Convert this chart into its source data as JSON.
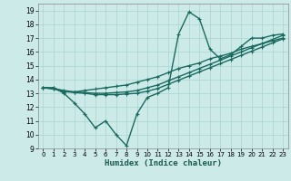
{
  "title": "",
  "xlabel": "Humidex (Indice chaleur)",
  "background_color": "#cceae8",
  "grid_color": "#aad4d0",
  "line_color": "#1a6a60",
  "xlim": [
    -0.5,
    23.5
  ],
  "ylim": [
    9,
    19.5
  ],
  "yticks": [
    9,
    10,
    11,
    12,
    13,
    14,
    15,
    16,
    17,
    18,
    19
  ],
  "xticks": [
    0,
    1,
    2,
    3,
    4,
    5,
    6,
    7,
    8,
    9,
    10,
    11,
    12,
    13,
    14,
    15,
    16,
    17,
    18,
    19,
    20,
    21,
    22,
    23
  ],
  "series": [
    [
      13.4,
      13.4,
      13.0,
      12.3,
      11.5,
      10.5,
      11.0,
      10.0,
      9.2,
      11.5,
      12.7,
      13.0,
      13.4,
      17.3,
      18.9,
      18.4,
      16.2,
      15.5,
      15.8,
      16.4,
      17.0,
      17.0,
      17.2,
      17.3
    ],
    [
      13.4,
      13.4,
      13.1,
      13.1,
      13.2,
      13.3,
      13.4,
      13.5,
      13.6,
      13.8,
      14.0,
      14.2,
      14.5,
      14.8,
      15.0,
      15.2,
      15.5,
      15.7,
      15.9,
      16.2,
      16.4,
      16.6,
      16.8,
      17.0
    ],
    [
      13.4,
      13.35,
      13.2,
      13.1,
      13.05,
      13.0,
      13.0,
      13.05,
      13.1,
      13.2,
      13.4,
      13.6,
      13.9,
      14.2,
      14.5,
      14.8,
      15.1,
      15.4,
      15.7,
      16.0,
      16.3,
      16.6,
      16.9,
      17.2
    ],
    [
      13.4,
      13.3,
      13.15,
      13.05,
      13.0,
      12.9,
      12.9,
      12.9,
      12.95,
      13.0,
      13.15,
      13.35,
      13.65,
      13.95,
      14.25,
      14.55,
      14.85,
      15.15,
      15.45,
      15.75,
      16.05,
      16.35,
      16.65,
      16.95
    ]
  ]
}
